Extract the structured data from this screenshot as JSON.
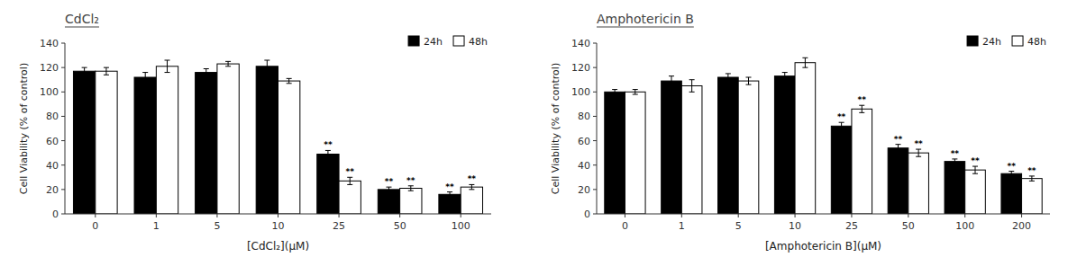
{
  "chart_data": [
    {
      "type": "bar",
      "title": "CdCl₂",
      "xlabel": "[CdCl₂](μM)",
      "ylabel": "Cell Viability (% of control)",
      "categories": [
        "0",
        "1",
        "5",
        "10",
        "25",
        "50",
        "100"
      ],
      "series": [
        {
          "name": "24h",
          "color": "#000000",
          "values": [
            117,
            112,
            116,
            121,
            49,
            20,
            16
          ],
          "errors": [
            3,
            4,
            3,
            5,
            3,
            2,
            2
          ],
          "annotations": [
            null,
            null,
            null,
            null,
            "**",
            "**",
            "**"
          ]
        },
        {
          "name": "48h",
          "color": "#ffffff",
          "values": [
            117,
            121,
            123,
            109,
            27,
            21,
            22
          ],
          "errors": [
            3,
            5,
            2,
            2,
            3,
            2,
            2
          ],
          "annotations": [
            null,
            null,
            null,
            null,
            "**",
            "**",
            "**"
          ]
        }
      ],
      "ylim": [
        0,
        140
      ],
      "yticks": [
        0,
        20,
        40,
        60,
        80,
        100,
        120,
        140
      ],
      "grid": false,
      "legend": "upper right"
    },
    {
      "type": "bar",
      "title": "Amphotericin B",
      "xlabel": "[Amphotericin B](μM)",
      "ylabel": "Cell Viability (% of control)",
      "categories": [
        "0",
        "1",
        "5",
        "10",
        "25",
        "50",
        "100",
        "200"
      ],
      "series": [
        {
          "name": "24h",
          "color": "#000000",
          "values": [
            100,
            109,
            112,
            113,
            72,
            54,
            43,
            33
          ],
          "errors": [
            2,
            4,
            3,
            3,
            3,
            3,
            2,
            2
          ],
          "annotations": [
            null,
            null,
            null,
            null,
            "**",
            "**",
            "**",
            "**"
          ]
        },
        {
          "name": "48h",
          "color": "#ffffff",
          "values": [
            100,
            105,
            109,
            124,
            86,
            50,
            36,
            29
          ],
          "errors": [
            2,
            5,
            3,
            4,
            3,
            3,
            3,
            2
          ],
          "annotations": [
            null,
            null,
            null,
            null,
            "**",
            "**",
            "**",
            "**"
          ]
        }
      ],
      "ylim": [
        0,
        140
      ],
      "yticks": [
        0,
        20,
        40,
        60,
        80,
        100,
        120,
        140
      ],
      "grid": false,
      "legend": "upper right"
    }
  ]
}
